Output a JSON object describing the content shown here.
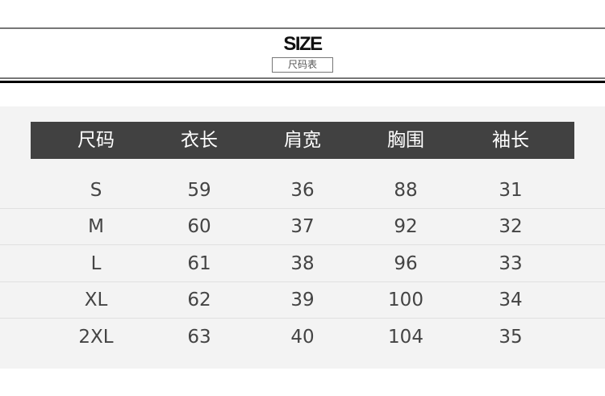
{
  "header": {
    "title": "SIZE",
    "subtitle": "尺码表"
  },
  "table": {
    "columns": [
      "尺码",
      "衣长",
      "肩宽",
      "胸围",
      "袖长"
    ],
    "rows": [
      [
        "S",
        "59",
        "36",
        "88",
        "31"
      ],
      [
        "M",
        "60",
        "37",
        "92",
        "32"
      ],
      [
        "L",
        "61",
        "38",
        "96",
        "33"
      ],
      [
        "XL",
        "62",
        "39",
        "100",
        "34"
      ],
      [
        "2XL",
        "63",
        "40",
        "104",
        "35"
      ]
    ]
  },
  "colors": {
    "header_bg": "#414141",
    "panel_bg": "#f3f3f3",
    "text": "#444444"
  }
}
